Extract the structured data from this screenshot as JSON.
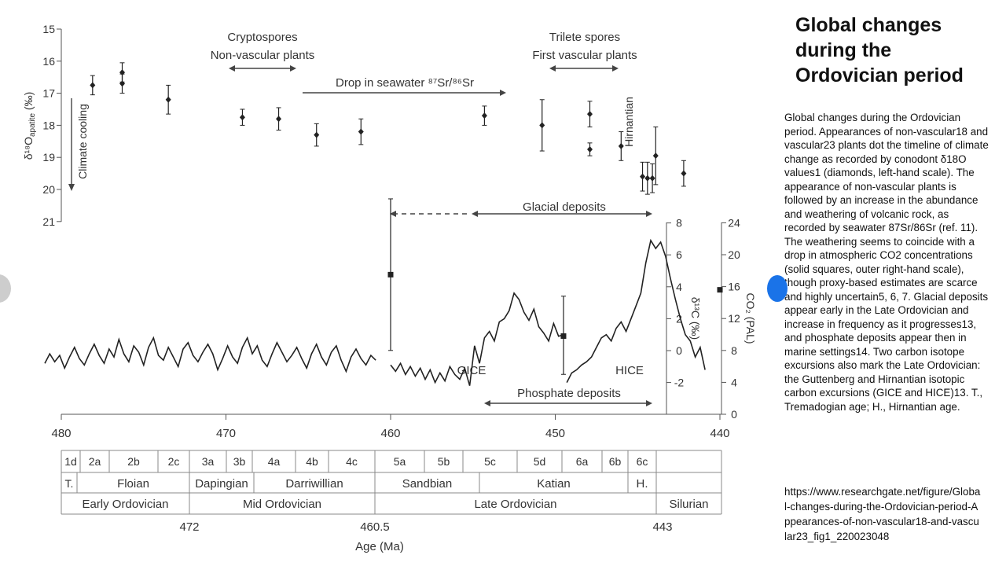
{
  "slide": {
    "title": "Global changes during the Ordovician period",
    "caption": "Global changes during the Ordovician period. Appearances of non-vascular18 and vascular23 plants dot the timeline of climate change as recorded by conodont δ18O values1 (diamonds, left-hand scale). The appearance of non-vascular plants is followed by an increase in the abundance and weathering of volcanic rock, as recorded by seawater 87Sr/86Sr (ref. 11). The weathering seems to coincide with a drop in atmospheric CO2 concentrations (solid squares, outer right-hand scale), though proxy-based estimates are scarce and highly uncertain5, 6, 7. Glacial deposits appear early in the Late Ordovician and increase in frequency as it progresses13, and phosphate deposits appear then in marine settings14. Two carbon isotope excursions also mark the Late Ordovician: the Guttenberg and Hirnantian isotopic carbon excursions (GICE and HICE)13. T., Tremadogian age; H., Hirnantian age.",
    "source": "https://www.researchgate.net/figure/Global-changes-during-the-Ordovician-period-Appearances-of-non-vascular18-and-vascular23_fig1_220023048"
  },
  "colors": {
    "axis": "#555555",
    "text": "#333333",
    "ink": "#222222",
    "nav_right": "#1a73e8",
    "nav_left": "#c4c4c4"
  },
  "chart_data": {
    "type": "scatter",
    "x_axis": {
      "label": "Age (Ma)",
      "range": [
        480,
        440
      ],
      "reversed": true,
      "ticks": [
        "480",
        "470",
        "460",
        "450",
        "440"
      ]
    },
    "annotations": {
      "crypto_1": "Cryptospores",
      "crypto_2": "Non-vascular plants",
      "trilete_1": "Trilete spores",
      "trilete_2": "First vascular plants",
      "sr_drop": "Drop in seawater ⁸⁷Sr/⁸⁶Sr",
      "glacial": "Glacial deposits",
      "phosphate": "Phosphate deposits",
      "hirnantian": "Hirnantian",
      "climate": "Climate cooling",
      "gice": "GICE",
      "hice": "HICE"
    },
    "d18O": {
      "axis_label": "δ¹⁸O",
      "axis_sub": "apatite",
      "axis_unit": " (‰)",
      "range": [
        15,
        21
      ],
      "ticks": [
        "15",
        "16",
        "17",
        "18",
        "19",
        "20",
        "21"
      ],
      "points": [
        {
          "age": 478.1,
          "value": 16.75,
          "err": 0.3
        },
        {
          "age": 476.3,
          "value": 16.35,
          "err": 0.3
        },
        {
          "age": 476.3,
          "value": 16.7,
          "err": 0.3
        },
        {
          "age": 473.5,
          "value": 17.2,
          "err": 0.45
        },
        {
          "age": 469.0,
          "value": 17.75,
          "err": 0.25
        },
        {
          "age": 466.8,
          "value": 17.8,
          "err": 0.35
        },
        {
          "age": 464.5,
          "value": 18.3,
          "err": 0.35
        },
        {
          "age": 461.8,
          "value": 18.2,
          "err": 0.4
        },
        {
          "age": 454.3,
          "value": 17.7,
          "err": 0.3
        },
        {
          "age": 450.8,
          "value": 18.0,
          "err": 0.8
        },
        {
          "age": 447.9,
          "value": 17.65,
          "err": 0.4
        },
        {
          "age": 447.9,
          "value": 18.75,
          "err": 0.2
        },
        {
          "age": 446.0,
          "value": 18.65,
          "err": 0.45
        },
        {
          "age": 444.7,
          "value": 19.6,
          "err": 0.45
        },
        {
          "age": 444.4,
          "value": 19.65,
          "err": 0.5
        },
        {
          "age": 444.1,
          "value": 19.65,
          "err": 0.45
        },
        {
          "age": 443.9,
          "value": 18.95,
          "err": 0.9
        },
        {
          "age": 442.2,
          "value": 19.5,
          "err": 0.4
        }
      ]
    },
    "d13C": {
      "axis_label": "δ¹³C (‰)",
      "range": [
        -4,
        8
      ],
      "ticks": [
        "8",
        "6",
        "4",
        "2",
        "0",
        "-2"
      ],
      "segments": [
        [
          [
            481.0,
            -0.8
          ],
          [
            480.7,
            -0.2
          ],
          [
            480.4,
            -0.7
          ],
          [
            480.1,
            -0.3
          ],
          [
            479.8,
            -1.1
          ],
          [
            479.5,
            -0.4
          ],
          [
            479.2,
            0.2
          ],
          [
            478.9,
            -0.5
          ],
          [
            478.6,
            -0.9
          ],
          [
            478.3,
            -0.2
          ],
          [
            478.0,
            0.4
          ],
          [
            477.7,
            -0.3
          ],
          [
            477.4,
            -0.8
          ],
          [
            477.1,
            0.1
          ],
          [
            476.8,
            -0.4
          ],
          [
            476.5,
            0.7
          ],
          [
            476.2,
            -0.2
          ],
          [
            475.9,
            -0.7
          ],
          [
            475.6,
            0.3
          ],
          [
            475.3,
            -0.1
          ],
          [
            475.0,
            -0.9
          ],
          [
            474.7,
            0.2
          ],
          [
            474.4,
            0.8
          ],
          [
            474.1,
            -0.3
          ],
          [
            473.8,
            -0.6
          ],
          [
            473.5,
            0.2
          ],
          [
            473.2,
            -0.4
          ],
          [
            472.9,
            -1.0
          ],
          [
            472.6,
            0.1
          ],
          [
            472.3,
            0.5
          ],
          [
            472.0,
            -0.3
          ],
          [
            471.7,
            -0.7
          ],
          [
            471.4,
            -0.1
          ],
          [
            471.1,
            0.4
          ],
          [
            470.8,
            -0.2
          ],
          [
            470.5,
            -1.2
          ],
          [
            470.2,
            -0.5
          ],
          [
            469.9,
            0.3
          ],
          [
            469.6,
            -0.4
          ],
          [
            469.3,
            -0.8
          ],
          [
            469.0,
            0.2
          ],
          [
            468.7,
            0.8
          ],
          [
            468.4,
            -0.2
          ],
          [
            468.1,
            0.3
          ],
          [
            467.8,
            -0.6
          ],
          [
            467.5,
            -1.0
          ],
          [
            467.2,
            -0.2
          ],
          [
            466.9,
            0.5
          ],
          [
            466.6,
            -0.1
          ],
          [
            466.3,
            -0.7
          ],
          [
            466.0,
            -0.3
          ],
          [
            465.7,
            0.2
          ],
          [
            465.4,
            -0.5
          ],
          [
            465.1,
            -1.1
          ],
          [
            464.8,
            -0.2
          ],
          [
            464.5,
            0.4
          ],
          [
            464.2,
            -0.4
          ],
          [
            463.9,
            -0.9
          ],
          [
            463.6,
            -0.1
          ],
          [
            463.3,
            0.3
          ],
          [
            463.0,
            -0.6
          ],
          [
            462.7,
            -1.3
          ],
          [
            462.4,
            -0.4
          ],
          [
            462.1,
            0.1
          ],
          [
            461.8,
            -0.5
          ],
          [
            461.5,
            -0.9
          ],
          [
            461.2,
            -0.3
          ],
          [
            460.9,
            -0.6
          ]
        ],
        [
          [
            460.0,
            -0.9
          ],
          [
            459.7,
            -1.3
          ],
          [
            459.4,
            -0.8
          ],
          [
            459.1,
            -1.5
          ],
          [
            458.8,
            -1.0
          ],
          [
            458.5,
            -1.6
          ],
          [
            458.2,
            -1.1
          ],
          [
            457.9,
            -1.8
          ],
          [
            457.6,
            -1.2
          ],
          [
            457.3,
            -2.0
          ],
          [
            457.0,
            -1.4
          ],
          [
            456.7,
            -1.9
          ],
          [
            456.4,
            -1.0
          ],
          [
            456.1,
            -1.5
          ],
          [
            455.8,
            -1.8
          ],
          [
            455.5,
            -1.1
          ],
          [
            455.2,
            -2.2
          ],
          [
            454.9,
            0.3
          ],
          [
            454.6,
            -0.8
          ],
          [
            454.3,
            0.8
          ],
          [
            454.0,
            1.2
          ],
          [
            453.7,
            0.6
          ],
          [
            453.4,
            1.8
          ],
          [
            453.1,
            2.0
          ],
          [
            452.8,
            2.5
          ],
          [
            452.5,
            3.6
          ],
          [
            452.2,
            3.2
          ],
          [
            451.9,
            2.4
          ],
          [
            451.6,
            1.9
          ],
          [
            451.3,
            2.6
          ],
          [
            451.0,
            1.5
          ],
          [
            450.7,
            1.1
          ],
          [
            450.4,
            0.6
          ],
          [
            450.1,
            1.7
          ],
          [
            449.8,
            0.9
          ],
          [
            449.5,
            1.0
          ]
        ],
        [
          [
            449.3,
            -2.0
          ],
          [
            449.0,
            -1.4
          ],
          [
            448.7,
            -1.2
          ],
          [
            448.4,
            -0.9
          ],
          [
            448.1,
            -0.7
          ],
          [
            447.8,
            -0.4
          ],
          [
            447.5,
            0.2
          ],
          [
            447.2,
            0.8
          ],
          [
            446.9,
            1.0
          ],
          [
            446.6,
            0.6
          ],
          [
            446.3,
            1.4
          ],
          [
            446.0,
            1.8
          ],
          [
            445.7,
            1.2
          ],
          [
            445.4,
            2.0
          ],
          [
            445.1,
            2.8
          ],
          [
            444.8,
            3.6
          ],
          [
            444.5,
            5.5
          ],
          [
            444.2,
            6.9
          ],
          [
            443.9,
            6.4
          ],
          [
            443.6,
            6.8
          ],
          [
            443.3,
            5.9
          ],
          [
            443.0,
            4.5
          ],
          [
            442.7,
            3.2
          ],
          [
            442.4,
            2.0
          ],
          [
            442.1,
            1.0
          ],
          [
            441.8,
            0.6
          ],
          [
            441.5,
            -0.4
          ],
          [
            441.2,
            0.2
          ],
          [
            440.9,
            -1.2
          ]
        ]
      ]
    },
    "co2": {
      "axis_label": "CO₂ (PAL)",
      "range": [
        0,
        24
      ],
      "ticks": [
        "24",
        "20",
        "16",
        "12",
        "8",
        "4",
        "0"
      ],
      "points": [
        {
          "age": 460.0,
          "value": 17.5,
          "err_lo": 8.0,
          "err_hi": 27.0
        },
        {
          "age": 449.5,
          "value": 9.8,
          "err_lo": 5.0,
          "err_hi": 14.8
        },
        {
          "age": 440.0,
          "value": 15.6,
          "err_lo": 15.6,
          "err_hi": 15.6
        }
      ]
    },
    "timescale": {
      "stages": [
        "1d",
        "2a",
        "2b",
        "2c",
        "3a",
        "3b",
        "4a",
        "4b",
        "4c",
        "5a",
        "5b",
        "5c",
        "5d",
        "6a",
        "6b",
        "6c"
      ],
      "ages_t": "T.",
      "ages": [
        "Floian",
        "Dapingian",
        "Darriwillian",
        "Sandbian",
        "Katian",
        "H."
      ],
      "epochs": [
        "Early Ordovician",
        "Mid Ordovician",
        "Late Ordovician",
        "Silurian"
      ],
      "boundaries": [
        "472",
        "460.5",
        "443"
      ],
      "age_label": "Age (Ma)"
    }
  }
}
